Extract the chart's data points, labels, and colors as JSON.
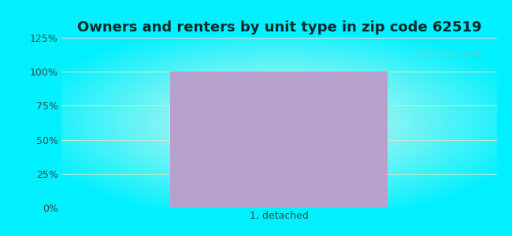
{
  "title": "Owners and renters by unit type in zip code 62519",
  "categories": [
    "1, detached"
  ],
  "values": [
    100
  ],
  "bar_color": "#b8a0cc",
  "ylim": [
    0,
    125
  ],
  "yticks": [
    0,
    25,
    50,
    75,
    100,
    125
  ],
  "ytick_labels": [
    "0%",
    "25%",
    "50%",
    "75%",
    "100%",
    "125%"
  ],
  "title_fontsize": 13,
  "tick_fontsize": 9,
  "xlabel_fontsize": 9,
  "outer_bg": "#00f0ff",
  "inner_r": 232,
  "inner_g": 248,
  "inner_b": 235,
  "outer_r": 0,
  "outer_g": 240,
  "outer_b": 255,
  "watermark_text": "City-Data.com",
  "watermark_color": "#aabcaa",
  "watermark_alpha": 0.55,
  "bar_width": 0.5,
  "figsize": [
    6.5,
    3.0
  ],
  "dpi": 100,
  "tick_color": "#2a5050",
  "gridline_color": "#d0e8d0",
  "gridline_lw": 0.7
}
